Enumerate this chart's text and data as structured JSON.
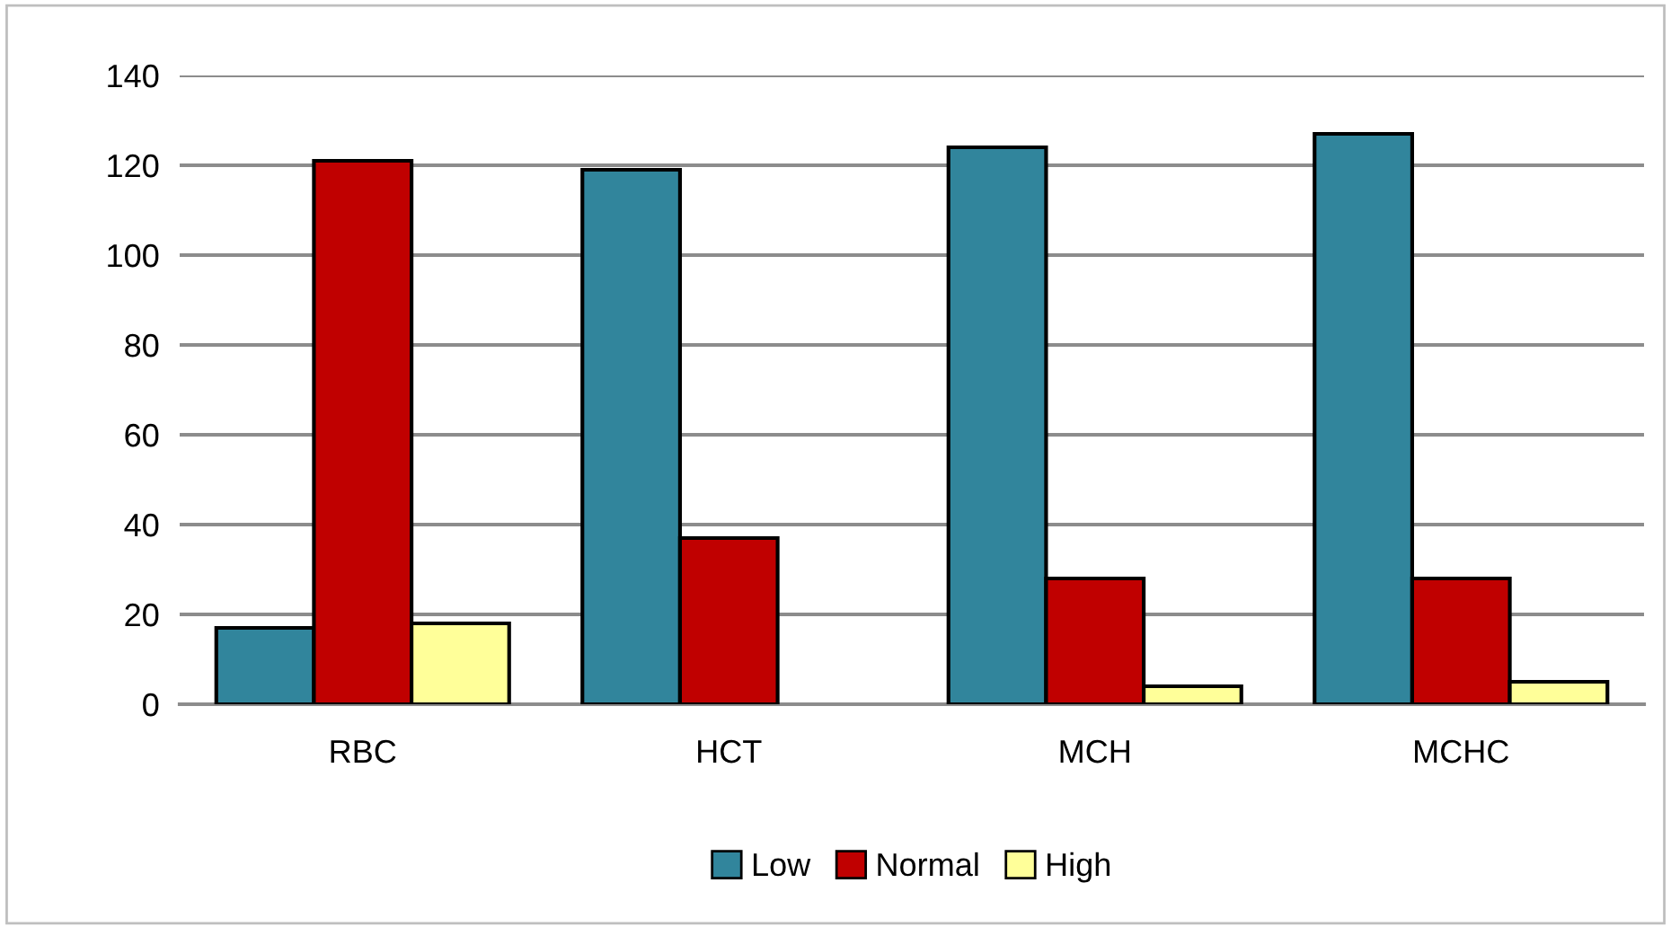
{
  "chart_data": {
    "type": "bar",
    "categories": [
      "RBC",
      "HCT",
      "MCH",
      "MCHC"
    ],
    "series": [
      {
        "name": "Low",
        "color": "#31859c",
        "values": [
          17,
          119,
          124,
          127
        ]
      },
      {
        "name": "Normal",
        "color": "#c00000",
        "values": [
          121,
          37,
          28,
          28
        ]
      },
      {
        "name": "High",
        "color": "#ffff99",
        "values": [
          18,
          null,
          4,
          5
        ]
      }
    ],
    "ylim": [
      0,
      140
    ],
    "yticks": [
      0,
      20,
      40,
      60,
      80,
      100,
      120,
      140
    ],
    "grid": "y",
    "legend": "bottom"
  }
}
